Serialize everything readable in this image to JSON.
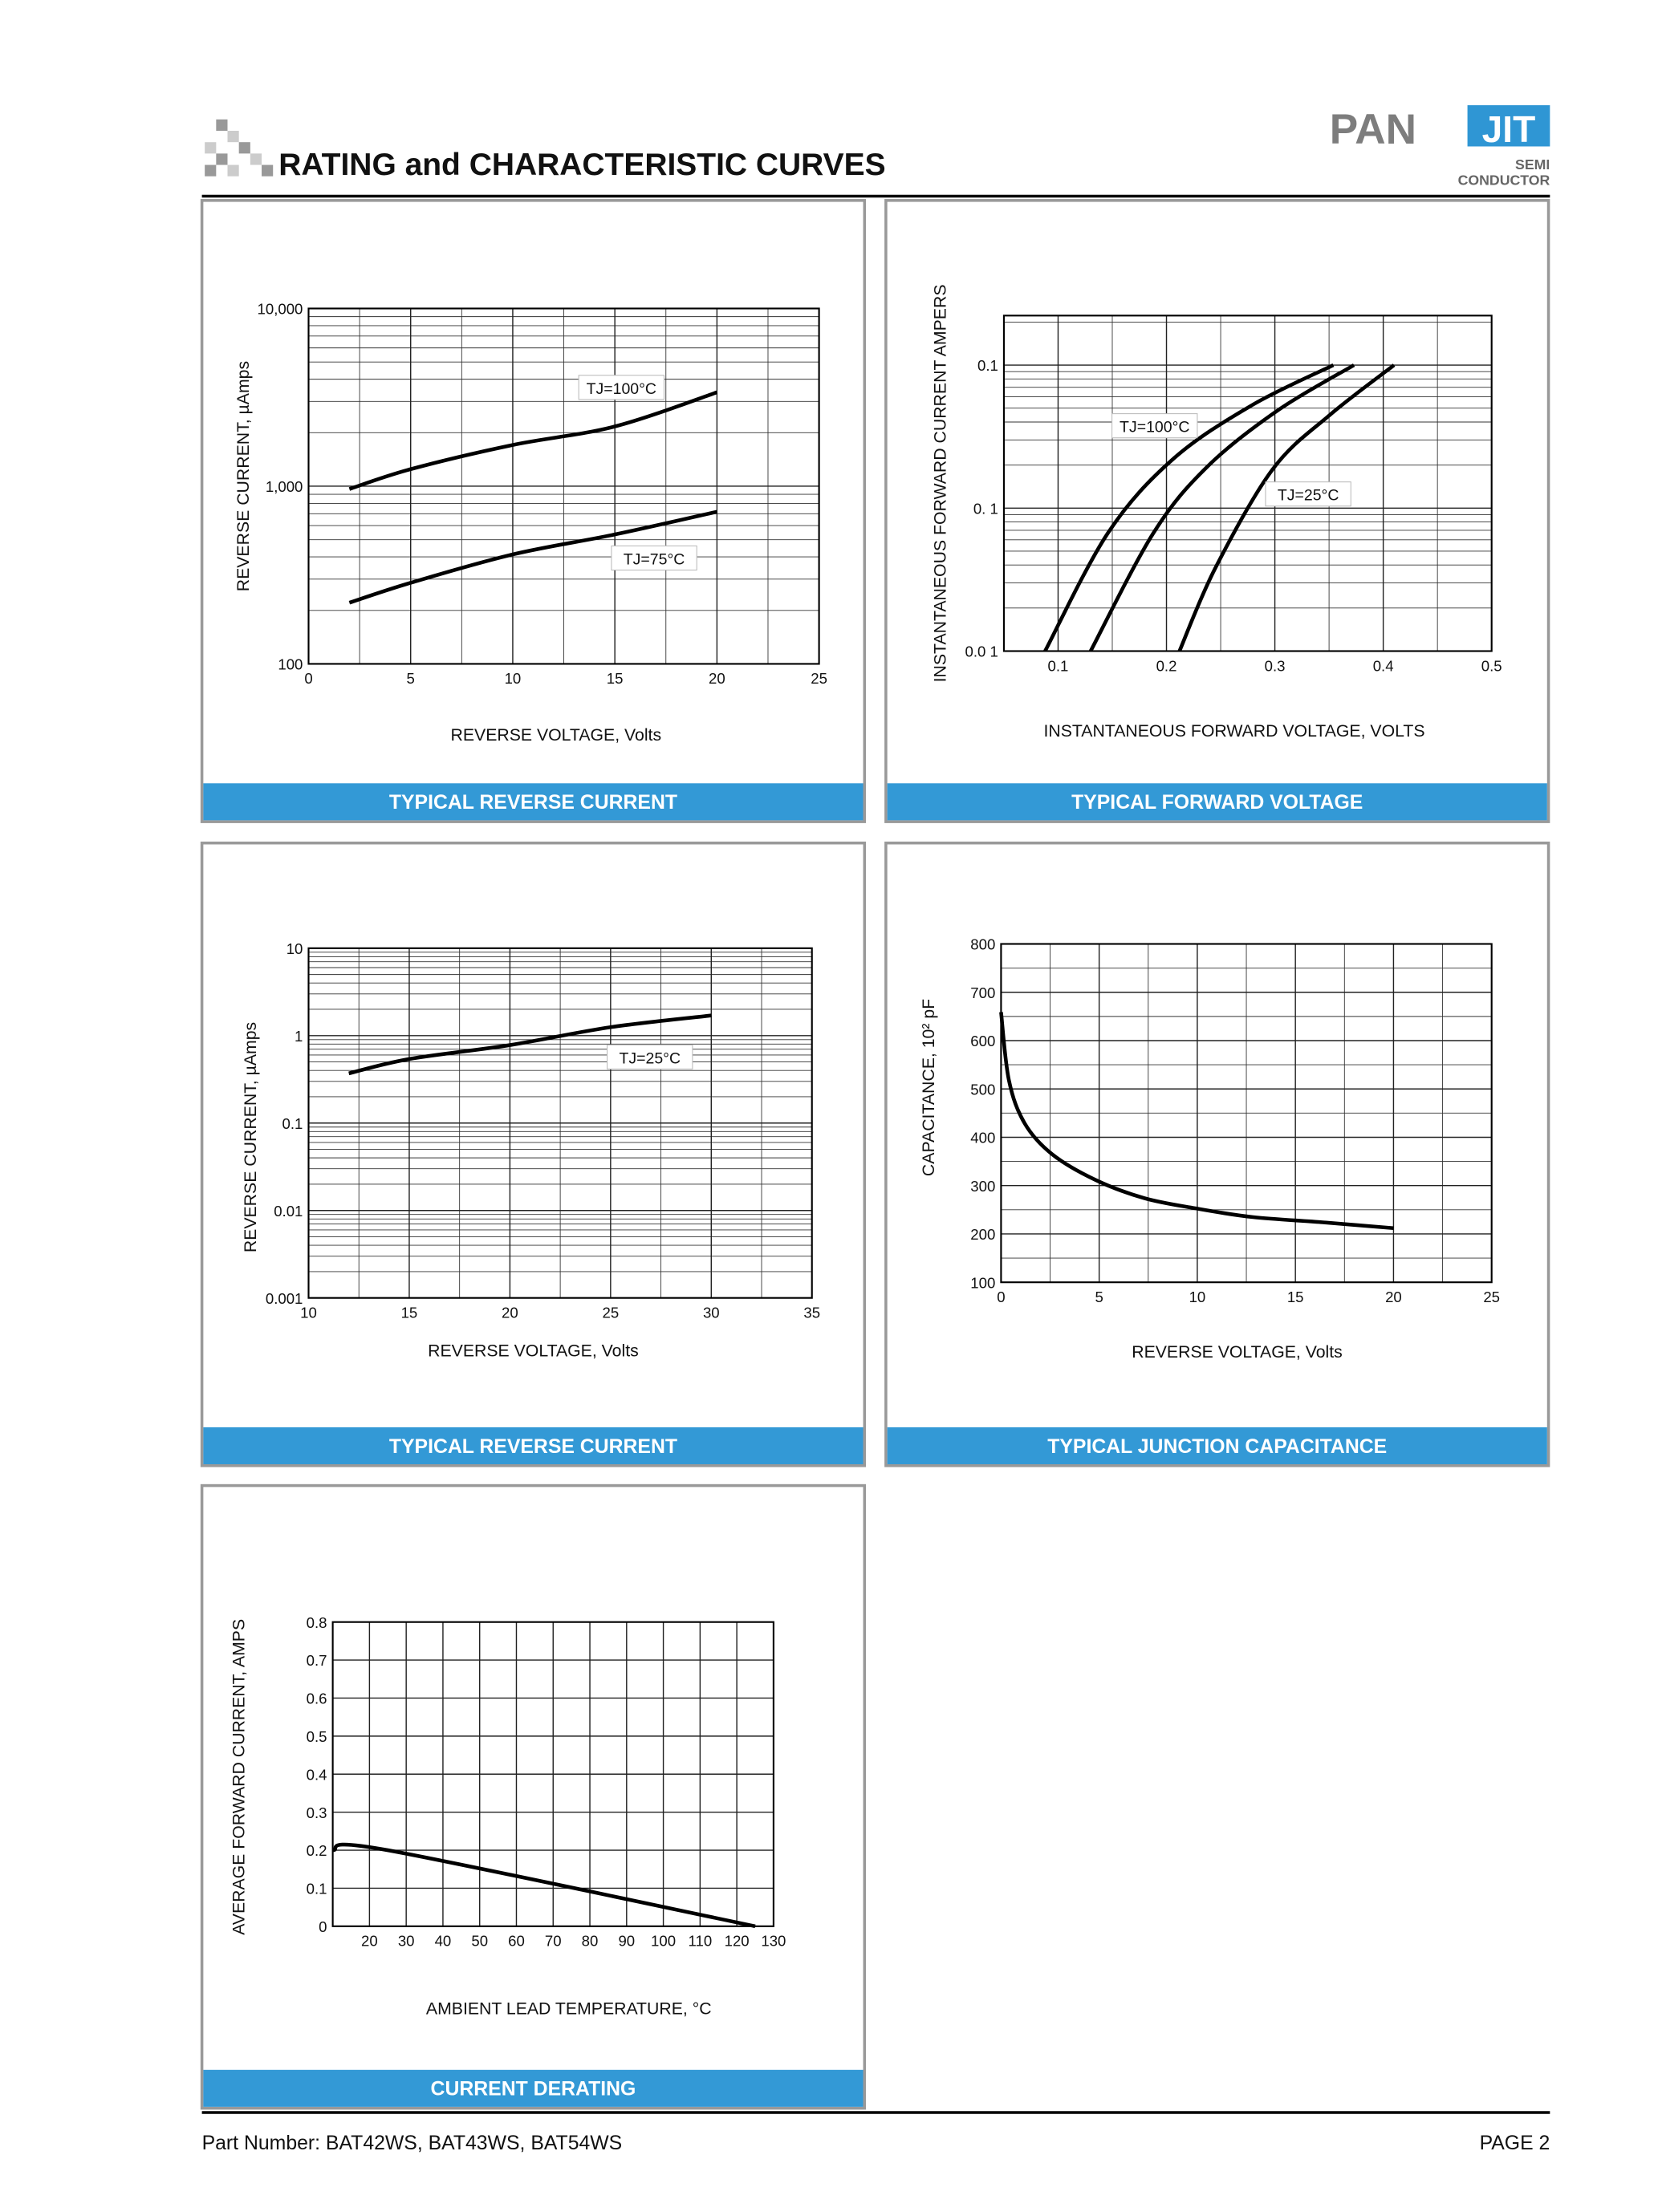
{
  "header": {
    "title": "RATING and CHARACTERISTIC CURVES",
    "logo_left": "PAN",
    "logo_right": "JIT",
    "logo_sub1": "SEMI",
    "logo_sub2": "CONDUCTOR"
  },
  "footer": {
    "part_number": "Part Number: BAT42WS, BAT43WS, BAT54WS",
    "page": "PAGE  2"
  },
  "chart_data": [
    {
      "type": "line",
      "title": "TYPICAL REVERSE CURRENT",
      "x_label": "REVERSE VOLTAGE, Volts",
      "y_label": "REVERSE CURRENT, µAmps",
      "y_log": true,
      "grid": true,
      "xlim": [
        0,
        25
      ],
      "xticks": [
        0,
        5,
        10,
        15,
        20,
        25
      ],
      "ylim": [
        100,
        10000
      ],
      "yticks": [
        100,
        {
          "value": 1000,
          "label": "1,000"
        },
        {
          "value": 10000,
          "label": "10,000"
        }
      ],
      "series": [
        {
          "name": "TJ=100°C",
          "color": "#000000",
          "x": [
            2,
            5,
            10,
            15,
            20
          ],
          "values": [
            964,
            1247,
            1706,
            2168,
            3375
          ]
        },
        {
          "name": "TJ=75°C",
          "color": "#000000",
          "x": [
            2,
            5,
            10,
            15,
            20
          ],
          "values": [
            221,
            286,
            413,
            535,
            718
          ]
        }
      ]
    },
    {
      "type": "line",
      "title": "TYPICAL FORWARD VOLTAGE",
      "x_label": "INSTANTANEOUS FORWARD VOLTAGE, VOLTS",
      "y_label": "INSTANTANEOUS FORWARD CURRENT AMPERS",
      "y_log": true,
      "grid": true,
      "xlim": [
        0.05,
        0.5
      ],
      "xticks": [
        0.1,
        0.2,
        0.3,
        0.4,
        0.5
      ],
      "ylim": [
        0.001,
        0.222
      ],
      "yticks": [
        {
          "value": 0.001,
          "label": "0.0 1"
        },
        {
          "value": 0.01,
          "label": "0. 1"
        },
        0.1
      ],
      "series": [
        {
          "name": "TJ=100°C",
          "color": "#000000",
          "x": [
            0.088,
            0.146,
            0.206,
            0.279,
            0.354
          ],
          "values": [
            0.001,
            0.0067,
            0.022,
            0.0525,
            0.1
          ]
        },
        {
          "color": "#000000",
          "x": [
            0.13,
            0.188,
            0.238,
            0.304,
            0.373
          ],
          "values": [
            0.001,
            0.0067,
            0.0196,
            0.049,
            0.1
          ]
        },
        {
          "name": "TJ=25°C",
          "color": "#000000",
          "x": [
            0.212,
            0.245,
            0.298,
            0.351,
            0.41
          ],
          "values": [
            0.001,
            0.0038,
            0.0187,
            0.045,
            0.1
          ]
        }
      ]
    },
    {
      "type": "line",
      "title": "TYPICAL REVERSE CURRENT",
      "x_label": "REVERSE VOLTAGE, Volts",
      "y_label": "REVERSE CURRENT, µAmps",
      "y_log": true,
      "grid": true,
      "xlim": [
        10,
        35
      ],
      "xticks": [
        10,
        15,
        20,
        25,
        30,
        35
      ],
      "ylim": [
        0.001,
        10
      ],
      "yticks": [
        0.001,
        0.01,
        0.1,
        1,
        10
      ],
      "series": [
        {
          "name": "TJ=25°C",
          "color": "#000000",
          "x": [
            12,
            15,
            20,
            25,
            30
          ],
          "values": [
            0.37,
            0.54,
            0.78,
            1.25,
            1.7
          ]
        }
      ]
    },
    {
      "type": "line",
      "title": "TYPICAL JUNCTION CAPACITANCE",
      "x_label": "REVERSE VOLTAGE, Volts",
      "y_label": "CAPACITANCE, 10² pF",
      "y_log": false,
      "grid": true,
      "xlim": [
        0,
        25
      ],
      "xticks": [
        0,
        5,
        10,
        15,
        20,
        25
      ],
      "ylim": [
        100,
        800
      ],
      "yticks": [
        100,
        200,
        300,
        400,
        500,
        600,
        700,
        800
      ],
      "series": [
        {
          "color": "#000000",
          "x": [
            0,
            0.4,
            1.2,
            2.6,
            4.8,
            7.3,
            9.9,
            12.8,
            16.4,
            20
          ],
          "values": [
            659,
            518,
            429,
            365,
            312,
            274,
            253,
            235,
            224,
            212
          ]
        }
      ]
    },
    {
      "type": "line",
      "title": "CURRENT DERATING",
      "x_label": "AMBIENT LEAD TEMPERATURE, °C",
      "y_label": "AVERAGE  FORWARD  CURRENT, AMPS",
      "y_log": false,
      "grid": true,
      "xlim": [
        10,
        130
      ],
      "xticks": [
        20,
        30,
        40,
        50,
        60,
        70,
        80,
        90,
        100,
        110,
        120,
        130
      ],
      "ylim": [
        0,
        0.8
      ],
      "yticks": [
        0,
        0.1,
        0.2,
        0.3,
        0.4,
        0.5,
        0.6,
        0.7,
        0.8
      ],
      "series": [
        {
          "color": "#000000",
          "x": [
            10,
            25,
            125
          ],
          "values": [
            0.2,
            0.2,
            0
          ]
        }
      ]
    }
  ]
}
